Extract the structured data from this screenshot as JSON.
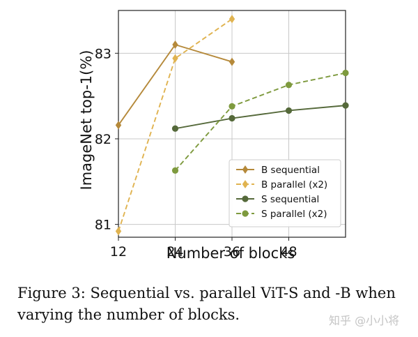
{
  "chart_data": {
    "type": "line",
    "xlabel": "Number of blocks",
    "ylabel": "ImageNet top-1(%)",
    "xlim": [
      12,
      60
    ],
    "ylim": [
      80.85,
      83.5
    ],
    "xticks": [
      12,
      24,
      36,
      48
    ],
    "yticks": [
      81,
      82,
      83
    ],
    "grid": true,
    "legend": "lower-right",
    "series": [
      {
        "name": "B sequential",
        "x": [
          12,
          24,
          36
        ],
        "y": [
          82.16,
          83.1,
          82.9
        ],
        "color": "#b5893a",
        "dashed": false,
        "marker": "diamond"
      },
      {
        "name": "B parallel (x2)",
        "x": [
          12,
          24,
          36
        ],
        "y": [
          80.92,
          82.94,
          83.4
        ],
        "color": "#e0b350",
        "dashed": true,
        "marker": "diamond"
      },
      {
        "name": "S sequential",
        "x": [
          24,
          36,
          48,
          60
        ],
        "y": [
          82.12,
          82.24,
          82.33,
          82.39
        ],
        "color": "#55693a",
        "dashed": false,
        "marker": "circle"
      },
      {
        "name": "S parallel (x2)",
        "x": [
          24,
          36,
          48,
          60
        ],
        "y": [
          81.63,
          82.38,
          82.63,
          82.77
        ],
        "color": "#7e9a3e",
        "dashed": true,
        "marker": "circle"
      }
    ]
  },
  "caption": "Figure 3:  Sequential vs. parallel ViT-S and -B when varying the number of blocks.",
  "watermark": "知乎 @小小将"
}
